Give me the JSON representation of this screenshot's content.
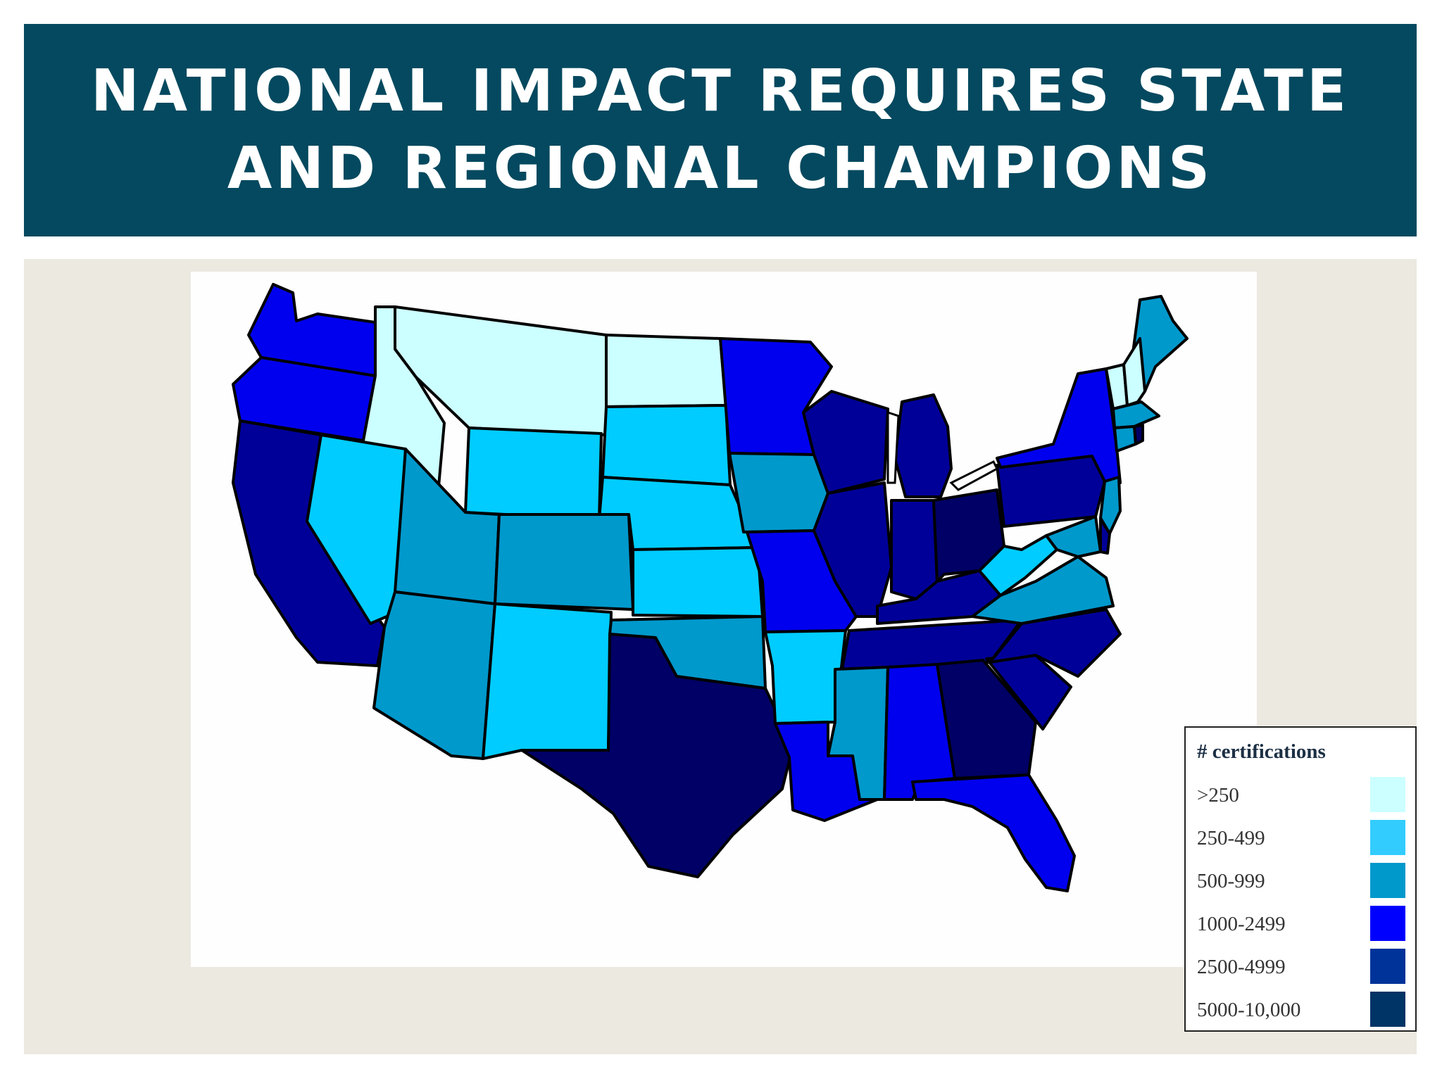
{
  "title": "NATIONAL IMPACT REQUIRES STATE AND REGIONAL CHAMPIONS",
  "map": {
    "legend_title": "# certifications",
    "legend": [
      {
        "label": ">250",
        "color": "#ccffff"
      },
      {
        "label": "250-499",
        "color": "#33ccff"
      },
      {
        "label": "500-999",
        "color": "#0099cc"
      },
      {
        "label": "1000-2499",
        "color": "#0000ff"
      },
      {
        "label": "2500-4999",
        "color": "#003399"
      },
      {
        "label": "5000-10,000",
        "color": "#003366"
      }
    ],
    "states": [
      {
        "name": "WA",
        "fill": "#0000ee"
      },
      {
        "name": "OR",
        "fill": "#0000ee"
      },
      {
        "name": "CA",
        "fill": "#000099"
      },
      {
        "name": "ID",
        "fill": "#ccffff"
      },
      {
        "name": "MT",
        "fill": "#ccffff"
      },
      {
        "name": "ND",
        "fill": "#ccffff"
      },
      {
        "name": "NV",
        "fill": "#00ccff"
      },
      {
        "name": "WY",
        "fill": "#00ccff"
      },
      {
        "name": "SD",
        "fill": "#00ccff"
      },
      {
        "name": "NE",
        "fill": "#00ccff"
      },
      {
        "name": "UT",
        "fill": "#0099cc"
      },
      {
        "name": "CO",
        "fill": "#0099cc"
      },
      {
        "name": "KS",
        "fill": "#00ccff"
      },
      {
        "name": "AZ",
        "fill": "#0099cc"
      },
      {
        "name": "NM",
        "fill": "#00ccff"
      },
      {
        "name": "OK",
        "fill": "#0099cc"
      },
      {
        "name": "TX",
        "fill": "#000066"
      },
      {
        "name": "MN",
        "fill": "#0000ee"
      },
      {
        "name": "IA",
        "fill": "#0099cc"
      },
      {
        "name": "MO",
        "fill": "#0000ee"
      },
      {
        "name": "AR",
        "fill": "#00ccff"
      },
      {
        "name": "LA",
        "fill": "#0000ee"
      },
      {
        "name": "WI",
        "fill": "#000099"
      },
      {
        "name": "IL",
        "fill": "#000099"
      },
      {
        "name": "MI",
        "fill": "#000099"
      },
      {
        "name": "IN",
        "fill": "#000099"
      },
      {
        "name": "OH",
        "fill": "#000066"
      },
      {
        "name": "KY",
        "fill": "#000099"
      },
      {
        "name": "TN",
        "fill": "#000099"
      },
      {
        "name": "MS",
        "fill": "#0099cc"
      },
      {
        "name": "AL",
        "fill": "#0000ee"
      },
      {
        "name": "GA",
        "fill": "#000066"
      },
      {
        "name": "FL",
        "fill": "#0000ee"
      },
      {
        "name": "SC",
        "fill": "#000099"
      },
      {
        "name": "NC",
        "fill": "#000099"
      },
      {
        "name": "VA",
        "fill": "#0099cc"
      },
      {
        "name": "WV",
        "fill": "#00ccff"
      },
      {
        "name": "PA",
        "fill": "#000099"
      },
      {
        "name": "NY",
        "fill": "#0000ee"
      },
      {
        "name": "ME",
        "fill": "#0099cc"
      },
      {
        "name": "VT",
        "fill": "#ccffff"
      },
      {
        "name": "NH",
        "fill": "#ccffff"
      },
      {
        "name": "MA",
        "fill": "#0099cc"
      },
      {
        "name": "CT",
        "fill": "#0099cc"
      },
      {
        "name": "NJ",
        "fill": "#0099cc"
      },
      {
        "name": "MD",
        "fill": "#0099cc"
      },
      {
        "name": "DE",
        "fill": "#000099"
      },
      {
        "name": "RI",
        "fill": "#000066"
      }
    ]
  }
}
